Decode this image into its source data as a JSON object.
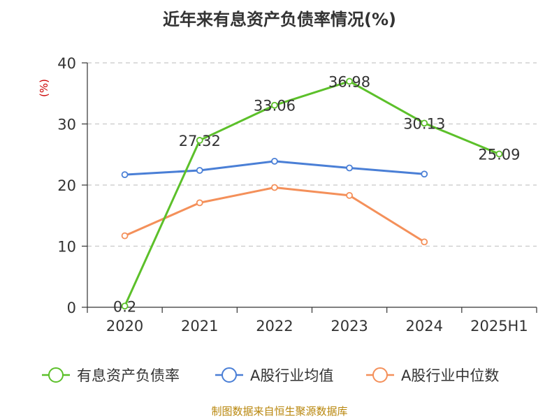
{
  "title": "近年来有息资产负债率情况(%)",
  "unit_label": "(%)",
  "source": "制图数据来自恒生聚源数据库",
  "chart_data": {
    "type": "line",
    "title": "近年来有息资产负债率情况(%)",
    "ylabel": "(%)",
    "categories": [
      "2020",
      "2021",
      "2022",
      "2023",
      "2024",
      "2025H1"
    ],
    "yticks": [
      "0",
      "10",
      "20",
      "30",
      "40"
    ],
    "ylim": [
      0,
      40
    ],
    "grid": true,
    "legend_position": "bottom",
    "series": [
      {
        "name": "有息资产负债率",
        "color": "#5cc02a",
        "values": [
          0.2,
          27.32,
          33.06,
          36.98,
          30.13,
          25.09
        ],
        "labels": [
          "0.2",
          "27.32",
          "33.06",
          "36.98",
          "30.13",
          "25.09"
        ]
      },
      {
        "name": "A股行业均值",
        "color": "#4a7fd6",
        "values": [
          21.7,
          22.4,
          23.9,
          22.8,
          21.8,
          null
        ]
      },
      {
        "name": "A股行业中位数",
        "color": "#f4905a",
        "values": [
          11.7,
          17.1,
          19.6,
          18.3,
          10.7,
          null
        ]
      }
    ]
  }
}
